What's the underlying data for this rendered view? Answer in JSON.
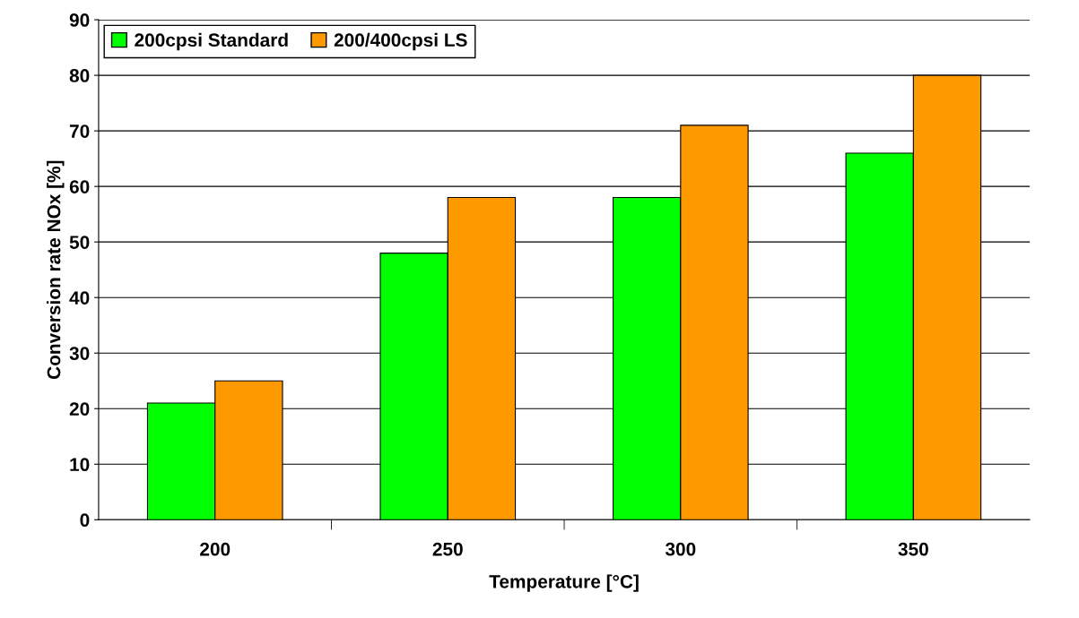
{
  "chart_data": {
    "type": "bar",
    "xlabel": "Temperature [°C]",
    "ylabel": "Conversion rate NOx [%]",
    "categories": [
      "200",
      "250",
      "300",
      "350"
    ],
    "series": [
      {
        "name": "200cpsi Standard",
        "color": "#00ff00",
        "values": [
          21,
          48,
          58,
          66
        ]
      },
      {
        "name": "200/400cpsi LS",
        "color": "#ff9900",
        "values": [
          25,
          58,
          71,
          80
        ]
      }
    ],
    "ylim": [
      0,
      90
    ],
    "yticks": [
      0,
      10,
      20,
      30,
      40,
      50,
      60,
      70,
      80,
      90
    ],
    "grid": "y",
    "legend": "top left"
  }
}
